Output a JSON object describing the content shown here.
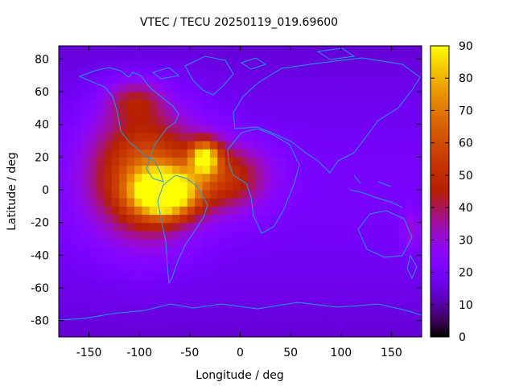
{
  "chart_data": {
    "type": "heatmap",
    "title": "VTEC / TECU 20250119_019.69600",
    "xlabel": "Longitude / deg",
    "ylabel": "Latitude / deg",
    "xlim": [
      -180,
      180
    ],
    "ylim": [
      -90,
      88
    ],
    "xticks": [
      -150,
      -100,
      -50,
      0,
      50,
      100,
      150
    ],
    "yticks": [
      80,
      60,
      40,
      20,
      0,
      -20,
      -40,
      -60,
      -80
    ],
    "colorbar": {
      "range": [
        0,
        90
      ],
      "ticks": [
        0,
        10,
        20,
        30,
        40,
        50,
        60,
        70,
        80,
        90
      ],
      "colormap": "gnuplot pm3d (black-purple-red-orange-yellow)"
    },
    "grid": false,
    "field_peaks": [
      {
        "lon": -75,
        "lat": -2,
        "value": 88,
        "spread_lon": 30,
        "spread_lat": 14
      },
      {
        "lon": -95,
        "lat": 10,
        "value": 65,
        "spread_lon": 52,
        "spread_lat": 38
      },
      {
        "lon": -35,
        "lat": 20,
        "value": 72,
        "spread_lon": 14,
        "spread_lat": 10
      },
      {
        "lon": -15,
        "lat": 8,
        "value": 50,
        "spread_lon": 42,
        "spread_lat": 20
      },
      {
        "lon": -105,
        "lat": 55,
        "value": 38,
        "spread_lon": 28,
        "spread_lat": 12
      },
      {
        "lon": 170,
        "lat": -25,
        "value": 32,
        "spread_lon": 10,
        "spread_lat": 12
      }
    ],
    "background_value": 20,
    "min_value": 5
  }
}
